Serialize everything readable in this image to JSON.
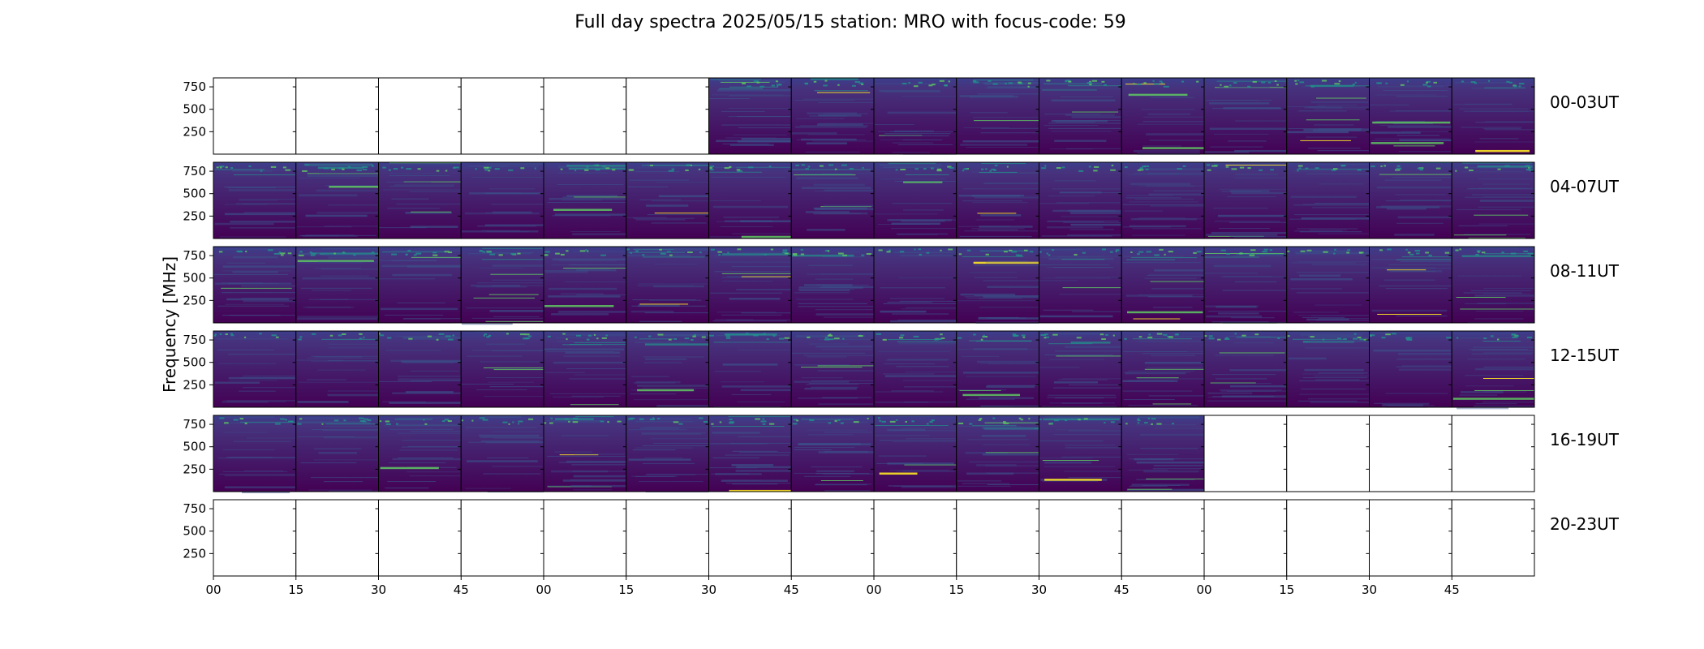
{
  "chart_data": {
    "type": "heatmap",
    "title": "Full day spectra 2025/05/15 station: MRO with focus-code: 59",
    "ylabel": "Frequency [MHz]",
    "xlabel": "",
    "ylim": [
      0,
      850
    ],
    "yticks": [
      250,
      500,
      750
    ],
    "xtick_labels": [
      "00",
      "15",
      "30",
      "45",
      "00",
      "15",
      "30",
      "45",
      "00",
      "15",
      "30",
      "45",
      "00",
      "15",
      "30",
      "45"
    ],
    "colormap": "viridis",
    "colors": {
      "background": "#ffffff",
      "empty_panel": "#ffffff",
      "low": "#440154",
      "mid": "#3b528b",
      "high": "#21918c",
      "peak": "#5ec962",
      "max": "#fde725"
    },
    "rows": [
      {
        "label": "00-03UT",
        "panels": [
          0,
          0,
          0,
          0,
          0,
          0,
          1,
          1,
          1,
          1,
          1,
          1,
          1,
          1,
          1,
          1
        ]
      },
      {
        "label": "04-07UT",
        "panels": [
          1,
          1,
          1,
          1,
          1,
          1,
          1,
          1,
          1,
          1,
          1,
          1,
          1,
          1,
          1,
          1
        ]
      },
      {
        "label": "08-11UT",
        "panels": [
          1,
          1,
          1,
          1,
          1,
          1,
          1,
          1,
          1,
          1,
          1,
          1,
          1,
          1,
          1,
          1
        ]
      },
      {
        "label": "12-15UT",
        "panels": [
          1,
          1,
          1,
          1,
          1,
          1,
          1,
          1,
          1,
          1,
          1,
          1,
          1,
          1,
          1,
          1
        ]
      },
      {
        "label": "16-19UT",
        "panels": [
          1,
          1,
          1,
          1,
          1,
          1,
          1,
          1,
          1,
          1,
          1,
          1,
          0,
          0,
          0,
          0
        ]
      },
      {
        "label": "20-23UT",
        "panels": [
          0,
          0,
          0,
          0,
          0,
          0,
          0,
          0,
          0,
          0,
          0,
          0,
          0,
          0,
          0,
          0
        ]
      }
    ]
  }
}
